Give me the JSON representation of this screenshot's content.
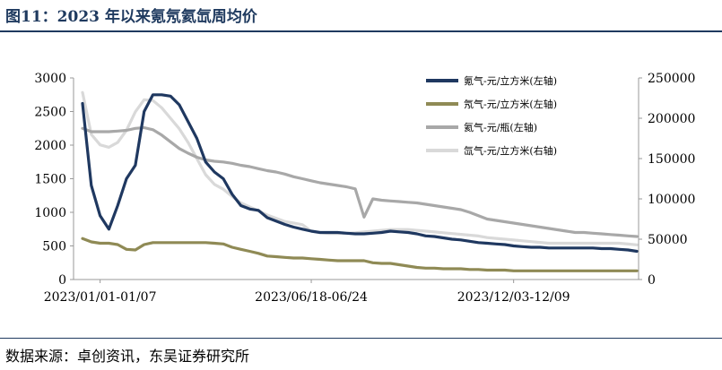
{
  "header": {
    "title": "图11：2023 年以来氪氖氦氙周均价"
  },
  "footer": {
    "source": "数据来源：卓创资讯，东吴证券研究所"
  },
  "chart_data": {
    "type": "line",
    "title": "图11：2023 年以来氪氖氦氙周均价",
    "x_count": 64,
    "x_tick_labels": [
      {
        "index": 2,
        "label": "2023/01/01-01/07"
      },
      {
        "index": 26,
        "label": "2023/06/18-06/24"
      },
      {
        "index": 49,
        "label": "2023/12/03-12/09"
      }
    ],
    "y_left": {
      "min": 0,
      "max": 3000,
      "ticks": [
        0,
        500,
        1000,
        1500,
        2000,
        2500,
        3000
      ]
    },
    "y_right": {
      "min": 0,
      "max": 250000,
      "ticks": [
        0,
        50000,
        100000,
        150000,
        200000,
        250000
      ]
    },
    "series": [
      {
        "name": "氪气-元/立方米(左轴)",
        "axis": "left",
        "color": "#1f3860",
        "width": 3.2,
        "values": [
          2620,
          1400,
          950,
          750,
          1100,
          1500,
          1700,
          2500,
          2750,
          2750,
          2730,
          2600,
          2350,
          2100,
          1750,
          1600,
          1500,
          1270,
          1100,
          1050,
          1030,
          920,
          870,
          820,
          780,
          750,
          720,
          700,
          700,
          700,
          690,
          680,
          680,
          690,
          700,
          720,
          710,
          700,
          680,
          650,
          640,
          620,
          600,
          590,
          570,
          550,
          540,
          530,
          520,
          500,
          490,
          480,
          480,
          470,
          470,
          470,
          470,
          470,
          470,
          460,
          460,
          450,
          440,
          420
        ]
      },
      {
        "name": "氖气-元/立方米(左轴)",
        "axis": "left",
        "color": "#8f8a55",
        "width": 3.2,
        "values": [
          610,
          560,
          540,
          540,
          520,
          450,
          440,
          520,
          550,
          550,
          550,
          550,
          550,
          550,
          550,
          540,
          530,
          480,
          450,
          420,
          390,
          350,
          340,
          330,
          320,
          320,
          310,
          300,
          290,
          280,
          280,
          280,
          280,
          250,
          240,
          240,
          220,
          200,
          180,
          170,
          170,
          160,
          160,
          160,
          150,
          150,
          140,
          140,
          140,
          130,
          130,
          130,
          130,
          130,
          130,
          130,
          130,
          130,
          130,
          130,
          130,
          130,
          130,
          130
        ]
      },
      {
        "name": "氦气-元/瓶(左轴)",
        "axis": "left",
        "color": "#a8a8a8",
        "width": 3.2,
        "values": [
          2250,
          2200,
          2200,
          2200,
          2210,
          2220,
          2250,
          2260,
          2230,
          2150,
          2050,
          1950,
          1880,
          1820,
          1780,
          1760,
          1750,
          1730,
          1700,
          1680,
          1650,
          1620,
          1600,
          1570,
          1530,
          1500,
          1470,
          1440,
          1420,
          1400,
          1380,
          1350,
          930,
          1200,
          1180,
          1170,
          1160,
          1150,
          1140,
          1120,
          1100,
          1080,
          1060,
          1040,
          1000,
          950,
          900,
          880,
          860,
          840,
          820,
          800,
          780,
          760,
          740,
          720,
          700,
          700,
          690,
          680,
          670,
          660,
          650,
          640
        ]
      },
      {
        "name": "氙气-元/立方米(右轴)",
        "axis": "right",
        "color": "#d9d9d9",
        "width": 3.2,
        "values": [
          232000,
          180000,
          167000,
          164000,
          170000,
          185000,
          208000,
          223000,
          222000,
          213000,
          200000,
          187000,
          170000,
          150000,
          130000,
          118000,
          112000,
          103000,
          95000,
          90000,
          85000,
          80000,
          76000,
          72000,
          70000,
          68000,
          60000,
          58000,
          57000,
          57000,
          57500,
          58000,
          59000,
          60000,
          61000,
          62000,
          62000,
          62000,
          61000,
          60000,
          59000,
          58000,
          57000,
          56000,
          55000,
          54000,
          52000,
          51000,
          50000,
          49000,
          48000,
          47000,
          46000,
          45000,
          45000,
          45000,
          45000,
          45000,
          45000,
          45000,
          45000,
          45000,
          44000,
          43000
        ]
      }
    ],
    "legend_position": "top-right",
    "grid": false
  }
}
